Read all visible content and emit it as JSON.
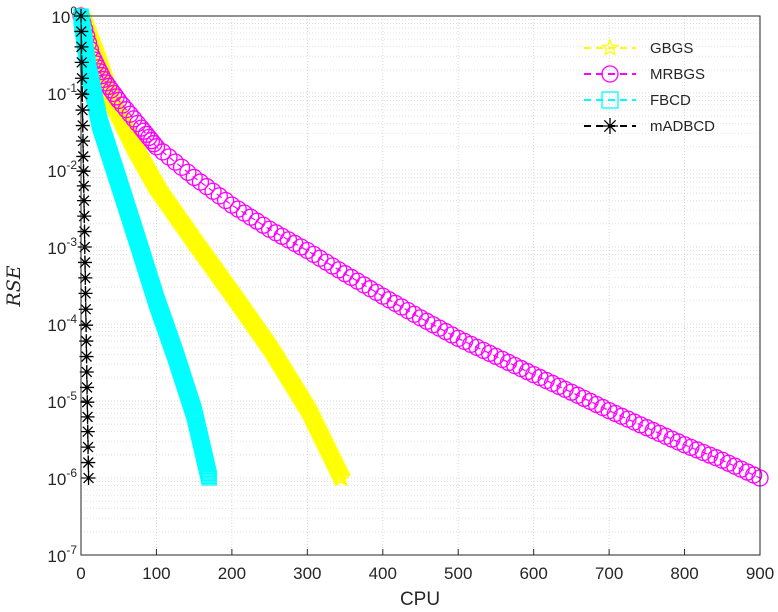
{
  "chart_data": {
    "type": "line",
    "xlabel": "CPU",
    "ylabel": "RSE",
    "xlim": [
      0,
      900
    ],
    "ylim": [
      1e-07,
      1
    ],
    "y_scale": "log",
    "grid": true,
    "minor_grid": true,
    "legend_position": "top-right",
    "x_ticks": [
      "0",
      "100",
      "200",
      "300",
      "400",
      "500",
      "600",
      "700",
      "800",
      "900"
    ],
    "y_ticks": [
      {
        "base": "10",
        "exp": "0"
      },
      {
        "base": "10",
        "exp": "-1"
      },
      {
        "base": "10",
        "exp": "-2"
      },
      {
        "base": "10",
        "exp": "-3"
      },
      {
        "base": "10",
        "exp": "-4"
      },
      {
        "base": "10",
        "exp": "-5"
      },
      {
        "base": "10",
        "exp": "-6"
      },
      {
        "base": "10",
        "exp": "-7"
      }
    ],
    "series": [
      {
        "name": "GBGS",
        "color": "#ffff00",
        "marker": "star",
        "x": [
          0,
          20,
          40,
          70,
          100,
          150,
          200,
          250,
          300,
          345
        ],
        "y": [
          1,
          0.3,
          0.08,
          0.02,
          0.006,
          0.0012,
          0.00025,
          5e-05,
          8e-06,
          1e-06
        ]
      },
      {
        "name": "MRBGS",
        "color": "#ff00ff",
        "marker": "circle",
        "x": [
          0,
          15,
          30,
          50,
          80,
          100,
          150,
          200,
          250,
          300,
          350,
          400,
          450,
          500,
          550,
          600,
          650,
          700,
          750,
          800,
          850,
          900
        ],
        "y": [
          1,
          0.3,
          0.15,
          0.08,
          0.035,
          0.02,
          0.008,
          0.0035,
          0.0017,
          0.0009,
          0.00045,
          0.00023,
          0.00012,
          6.5e-05,
          3.8e-05,
          2.2e-05,
          1.3e-05,
          7.5e-06,
          4.5e-06,
          2.7e-06,
          1.7e-06,
          1e-06
        ]
      },
      {
        "name": "FBCD",
        "color": "#00ffff",
        "marker": "square",
        "x": [
          0,
          10,
          25,
          50,
          75,
          100,
          125,
          150,
          170
        ],
        "y": [
          1,
          0.2,
          0.04,
          0.007,
          0.0012,
          0.0002,
          4e-05,
          7e-06,
          1e-06
        ]
      },
      {
        "name": "mADBCD",
        "color": "#000000",
        "marker": "asterisk",
        "x": [
          0,
          1,
          2,
          3,
          4,
          5,
          6,
          7,
          8,
          9,
          10
        ],
        "y": [
          1,
          0.25,
          0.06,
          0.015,
          0.004,
          0.001,
          0.00025,
          6e-05,
          1.5e-05,
          4e-06,
          1e-06
        ]
      }
    ]
  }
}
